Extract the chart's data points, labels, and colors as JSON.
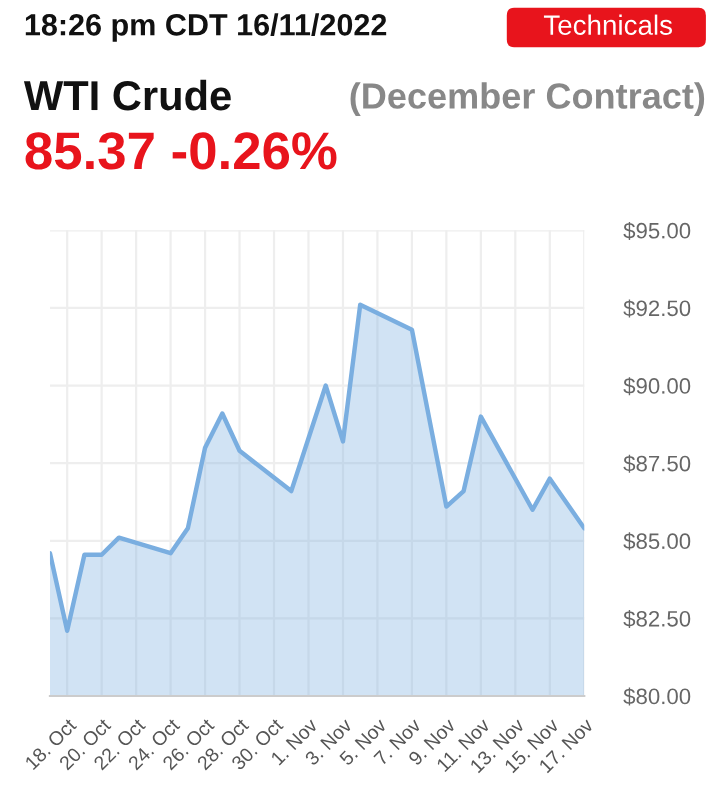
{
  "chart_data": {
    "type": "area",
    "title": "WTI Crude",
    "annotations": [
      "18:26 pm CDT 16/11/2022",
      "Technicals",
      "(December Contract)",
      "85.37 -0.26%"
    ],
    "x": [
      "2022-10-17",
      "2022-10-18",
      "2022-10-19",
      "2022-10-20",
      "2022-10-21",
      "2022-10-24",
      "2022-10-25",
      "2022-10-26",
      "2022-10-27",
      "2022-10-28",
      "2022-10-31",
      "2022-11-02",
      "2022-11-03",
      "2022-11-04",
      "2022-11-07",
      "2022-11-09",
      "2022-11-10",
      "2022-11-11",
      "2022-11-14",
      "2022-11-15",
      "2022-11-17"
    ],
    "series": [
      {
        "color": "#7aaee0",
        "values": [
          84.6,
          82.1,
          84.55,
          84.55,
          85.1,
          84.6,
          85.4,
          88.0,
          89.1,
          87.9,
          86.6,
          90.0,
          88.2,
          92.6,
          91.8,
          86.1,
          86.6,
          89.0,
          86.0,
          87.0,
          85.4
        ]
      }
    ],
    "xlim": [
      "2022-10-17",
      "2022-11-17"
    ],
    "xticks": [
      {
        "value": "2022-10-18",
        "label": "18. Oct"
      },
      {
        "value": "2022-10-20",
        "label": "20. Oct"
      },
      {
        "value": "2022-10-22",
        "label": "22. Oct"
      },
      {
        "value": "2022-10-24",
        "label": "24. Oct"
      },
      {
        "value": "2022-10-26",
        "label": "26. Oct"
      },
      {
        "value": "2022-10-28",
        "label": "28. Oct"
      },
      {
        "value": "2022-10-30",
        "label": "30. Oct"
      },
      {
        "value": "2022-11-01",
        "label": "1. Nov"
      },
      {
        "value": "2022-11-03",
        "label": "3. Nov"
      },
      {
        "value": "2022-11-05",
        "label": "5. Nov"
      },
      {
        "value": "2022-11-07",
        "label": "7. Nov"
      },
      {
        "value": "2022-11-09",
        "label": "9. Nov"
      },
      {
        "value": "2022-11-11",
        "label": "11. Nov"
      },
      {
        "value": "2022-11-13",
        "label": "13. Nov"
      },
      {
        "value": "2022-11-15",
        "label": "15. Nov"
      },
      {
        "value": "2022-11-17",
        "label": "17. Nov"
      }
    ],
    "ylim": [
      80,
      95
    ],
    "yticks": [
      {
        "value": 80,
        "label": "$80.00"
      },
      {
        "value": 82.5,
        "label": "$82.50"
      },
      {
        "value": 85,
        "label": "$85.00"
      },
      {
        "value": 87.5,
        "label": "$87.50"
      },
      {
        "value": 90,
        "label": "$90.00"
      },
      {
        "value": 92.5,
        "label": "$92.50"
      },
      {
        "value": 95,
        "label": "$95.00"
      }
    ],
    "grid": true,
    "legend": false
  }
}
